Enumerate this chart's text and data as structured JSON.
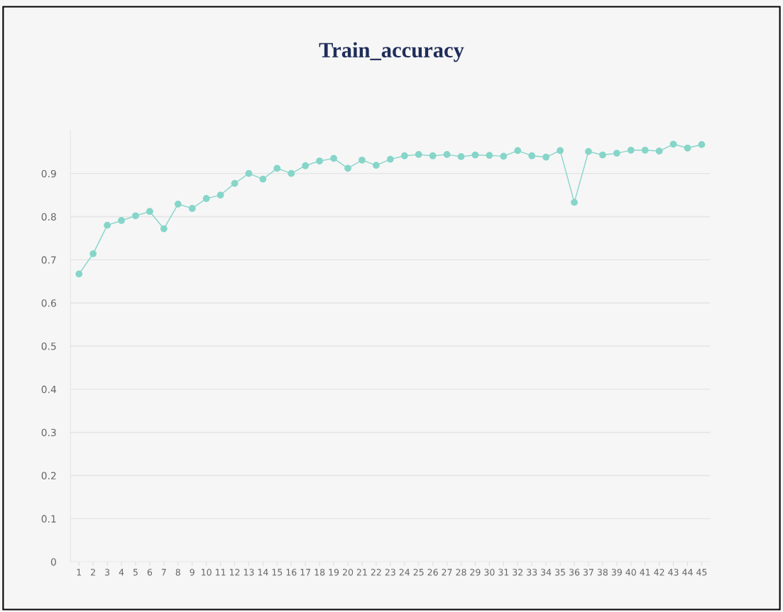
{
  "chart_data": {
    "type": "line",
    "title": "Train_accuracy",
    "categories": [
      "1",
      "2",
      "3",
      "4",
      "5",
      "6",
      "7",
      "8",
      "9",
      "10",
      "11",
      "12",
      "13",
      "14",
      "15",
      "16",
      "17",
      "18",
      "19",
      "20",
      "21",
      "22",
      "23",
      "24",
      "25",
      "26",
      "27",
      "28",
      "29",
      "30",
      "31",
      "32",
      "33",
      "34",
      "35",
      "36",
      "37",
      "38",
      "39",
      "40",
      "41",
      "42",
      "43",
      "44",
      "45"
    ],
    "series": [
      {
        "color": "#86d5c9",
        "values": [
          0.667,
          0.714,
          0.78,
          0.791,
          0.802,
          0.812,
          0.772,
          0.829,
          0.819,
          0.842,
          0.85,
          0.877,
          0.9,
          0.887,
          0.912,
          0.9,
          0.918,
          0.929,
          0.935,
          0.912,
          0.931,
          0.919,
          0.933,
          0.941,
          0.944,
          0.941,
          0.944,
          0.939,
          0.943,
          0.942,
          0.94,
          0.953,
          0.941,
          0.938,
          0.953,
          0.833,
          0.951,
          0.943,
          0.947,
          0.954,
          0.954,
          0.952,
          0.968,
          0.959,
          0.967
        ]
      }
    ],
    "ylim": [
      0,
      1.0
    ],
    "yticks": [
      0,
      0.1,
      0.2,
      0.3,
      0.4,
      0.5,
      0.6,
      0.7,
      0.8,
      0.9
    ],
    "grid": "y",
    "marker": "circle",
    "line_style": "solid"
  }
}
